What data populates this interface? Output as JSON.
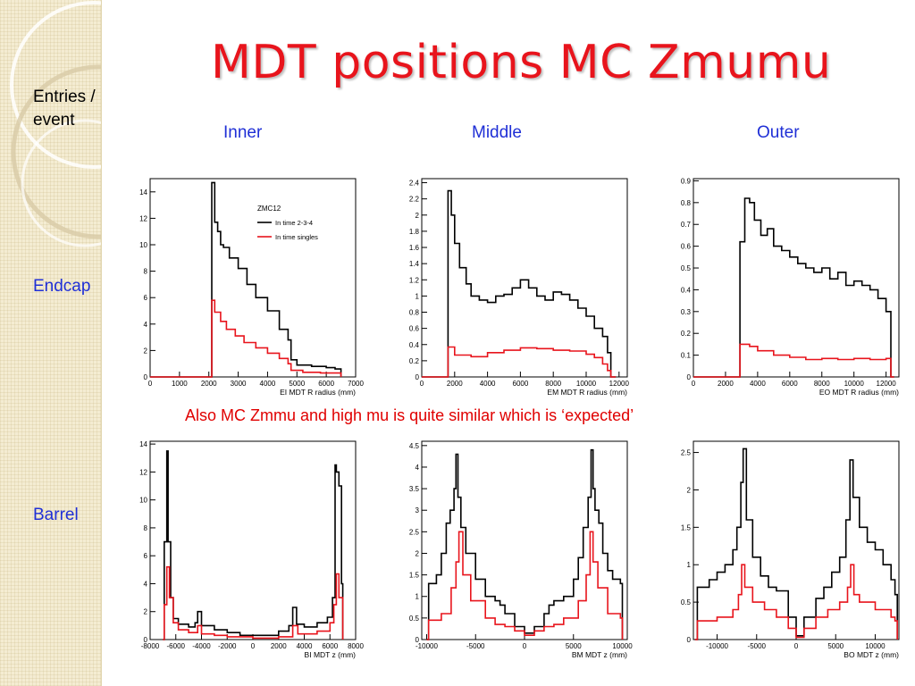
{
  "slide": {
    "title": "MDT positions MC Zmumu",
    "y_label": "Entries / event",
    "row_labels": {
      "endcap": "Endcap",
      "barrel": "Barrel"
    },
    "column_labels": {
      "inner": "Inner",
      "middle": "Middle",
      "outer": "Outer"
    },
    "note": "Also MC Zmmu and high mu is quite similar which is ‘expected’"
  },
  "colors": {
    "title": "#e8141c",
    "labels": "#1f2fd6",
    "note": "#e00000",
    "series_black": "#000000",
    "series_red": "#e8141c"
  },
  "chart_data": [
    {
      "id": "ei",
      "type": "line",
      "xlabel": "EI MDT R radius (mm)",
      "ylabel": "",
      "xlim": [
        0,
        7000
      ],
      "ylim": [
        0,
        15
      ],
      "xticks": [
        0,
        1000,
        2000,
        3000,
        4000,
        5000,
        6000,
        7000
      ],
      "yticks": [
        0,
        2,
        4,
        6,
        8,
        10,
        12,
        14
      ],
      "legend": {
        "title": "ZMC12",
        "position": "top-right"
      },
      "series": [
        {
          "name": "In time 2-3-4",
          "color": "#000000",
          "x": [
            0,
            2000,
            2100,
            2200,
            2300,
            2400,
            2500,
            2700,
            3000,
            3300,
            3600,
            4000,
            4400,
            4700,
            4800,
            5000,
            5500,
            6000,
            6300,
            6500
          ],
          "y": [
            0,
            0,
            14.7,
            11.7,
            11,
            10,
            9.8,
            9,
            8.2,
            7,
            6,
            5,
            3.6,
            2.8,
            1.3,
            0.9,
            0.8,
            0.7,
            0.6,
            0
          ]
        },
        {
          "name": "In time singles",
          "color": "#e8141c",
          "x": [
            0,
            2000,
            2100,
            2200,
            2400,
            2600,
            2900,
            3200,
            3600,
            4000,
            4400,
            4700,
            4800,
            5200,
            5800,
            6300,
            6500
          ],
          "y": [
            0,
            0,
            5.8,
            4.9,
            4.2,
            3.6,
            3.1,
            2.6,
            2.2,
            1.8,
            1.4,
            1,
            0.5,
            0.35,
            0.3,
            0.3,
            0
          ]
        }
      ]
    },
    {
      "id": "em",
      "type": "line",
      "xlabel": "EM MDT R radius (mm)",
      "ylabel": "",
      "xlim": [
        0,
        12500
      ],
      "ylim": [
        0,
        2.45
      ],
      "xticks": [
        0,
        2000,
        4000,
        6000,
        8000,
        10000,
        12000
      ],
      "yticks": [
        0,
        0.2,
        0.4,
        0.6,
        0.8,
        1,
        1.2,
        1.4,
        1.6,
        1.8,
        2,
        2.2,
        2.4
      ],
      "series": [
        {
          "name": "",
          "color": "#000000",
          "x": [
            0,
            1500,
            1600,
            1800,
            2000,
            2300,
            2700,
            3000,
            3500,
            4000,
            4500,
            5000,
            5500,
            6000,
            6500,
            7000,
            7500,
            8000,
            8500,
            9000,
            9500,
            10000,
            10500,
            11000,
            11300,
            11500,
            11800
          ],
          "y": [
            0,
            0,
            2.3,
            2,
            1.65,
            1.35,
            1.15,
            1.0,
            0.95,
            0.92,
            1.0,
            1.02,
            1.1,
            1.2,
            1.1,
            1.0,
            0.95,
            1.05,
            1.02,
            0.95,
            0.85,
            0.75,
            0.6,
            0.5,
            0.3,
            0,
            0
          ]
        },
        {
          "name": "",
          "color": "#e8141c",
          "x": [
            0,
            1500,
            1600,
            2000,
            3000,
            4000,
            5000,
            6000,
            7000,
            8000,
            9000,
            10000,
            10500,
            11000,
            11300,
            11500,
            11800
          ],
          "y": [
            0,
            0,
            0.37,
            0.27,
            0.25,
            0.3,
            0.33,
            0.36,
            0.35,
            0.33,
            0.32,
            0.28,
            0.24,
            0.16,
            0.08,
            0,
            0
          ]
        }
      ]
    },
    {
      "id": "eo",
      "type": "line",
      "xlabel": "EO MDT R radius (mm)",
      "ylabel": "",
      "xlim": [
        0,
        12800
      ],
      "ylim": [
        0,
        0.91
      ],
      "xticks": [
        0,
        2000,
        4000,
        6000,
        8000,
        10000,
        12000
      ],
      "yticks": [
        0,
        0.1,
        0.2,
        0.3,
        0.4,
        0.5,
        0.6,
        0.7,
        0.8,
        0.9
      ],
      "series": [
        {
          "name": "",
          "color": "#000000",
          "x": [
            0,
            2800,
            2900,
            3200,
            3500,
            3800,
            4200,
            4600,
            5000,
            5500,
            6000,
            6500,
            7000,
            7500,
            8000,
            8500,
            9000,
            9500,
            10000,
            10500,
            11000,
            11500,
            12000,
            12300,
            12500
          ],
          "y": [
            0,
            0,
            0.62,
            0.82,
            0.8,
            0.72,
            0.65,
            0.68,
            0.6,
            0.58,
            0.55,
            0.52,
            0.5,
            0.48,
            0.5,
            0.45,
            0.48,
            0.42,
            0.44,
            0.42,
            0.4,
            0.36,
            0.3,
            0,
            0
          ]
        },
        {
          "name": "",
          "color": "#e8141c",
          "x": [
            0,
            2800,
            2900,
            3500,
            4000,
            5000,
            6000,
            7000,
            8000,
            9000,
            10000,
            11000,
            12000,
            12300,
            12500
          ],
          "y": [
            0,
            0,
            0.15,
            0.14,
            0.12,
            0.1,
            0.09,
            0.08,
            0.085,
            0.08,
            0.085,
            0.08,
            0.085,
            0,
            0
          ]
        }
      ]
    },
    {
      "id": "bi",
      "type": "line",
      "xlabel": "BI MDT z (mm)",
      "ylabel": "",
      "xlim": [
        -8000,
        8000
      ],
      "ylim": [
        0,
        14.2
      ],
      "xticks": [
        -8000,
        -6000,
        -4000,
        -2000,
        0,
        2000,
        4000,
        6000,
        8000
      ],
      "yticks": [
        0,
        2,
        4,
        6,
        8,
        10,
        12,
        14
      ],
      "series": [
        {
          "name": "",
          "color": "#000000",
          "x": [
            -7000,
            -6900,
            -6700,
            -6600,
            -6400,
            -6200,
            -5800,
            -5000,
            -4500,
            -4300,
            -4000,
            -3000,
            -2000,
            -1000,
            0,
            1000,
            2000,
            2800,
            3100,
            3400,
            4000,
            5000,
            5800,
            6200,
            6400,
            6500,
            6700,
            6900,
            7000
          ],
          "y": [
            0,
            7,
            13.5,
            7,
            3,
            1.5,
            1.1,
            0.9,
            1.2,
            2,
            1.0,
            0.7,
            0.5,
            0.3,
            0.3,
            0.3,
            0.6,
            1.0,
            2.3,
            1.1,
            0.9,
            1.2,
            1.6,
            3,
            12.5,
            12,
            11,
            4,
            0
          ]
        },
        {
          "name": "",
          "color": "#e8141c",
          "x": [
            -7000,
            -6900,
            -6700,
            -6500,
            -6200,
            -5800,
            -5000,
            -4300,
            -4000,
            -3000,
            -2000,
            0,
            2000,
            3100,
            3500,
            4000,
            5000,
            6000,
            6300,
            6500,
            6700,
            7000
          ],
          "y": [
            0,
            2.5,
            5.2,
            3,
            1.2,
            0.7,
            0.5,
            1.0,
            0.4,
            0.3,
            0.2,
            0.1,
            0.2,
            1.0,
            0.4,
            0.4,
            0.6,
            1.2,
            2.5,
            4.7,
            3,
            0
          ]
        }
      ]
    },
    {
      "id": "bm",
      "type": "line",
      "xlabel": "BM MDT z (mm)",
      "ylabel": "",
      "xlim": [
        -10500,
        10500
      ],
      "ylim": [
        0,
        4.6
      ],
      "xticks": [
        -10000,
        -5000,
        0,
        5000,
        10000
      ],
      "yticks": [
        0,
        0.5,
        1,
        1.5,
        2,
        2.5,
        3,
        3.5,
        4,
        4.5
      ],
      "series": [
        {
          "name": "",
          "color": "#000000",
          "x": [
            -10000,
            -9800,
            -9000,
            -8500,
            -8000,
            -7600,
            -7200,
            -7000,
            -6800,
            -6500,
            -6000,
            -5000,
            -4000,
            -3000,
            -2500,
            -2000,
            -1000,
            0,
            1000,
            2000,
            2500,
            3000,
            4000,
            5000,
            5500,
            6000,
            6500,
            6800,
            7000,
            7200,
            7600,
            8000,
            8500,
            9000,
            9800,
            10000
          ],
          "y": [
            0,
            1.3,
            1.5,
            2.0,
            2.7,
            3.0,
            3.5,
            4.3,
            3.3,
            2.6,
            2.0,
            1.4,
            1.0,
            0.9,
            0.8,
            0.6,
            0.3,
            0.15,
            0.3,
            0.6,
            0.8,
            0.9,
            1.0,
            1.4,
            1.9,
            2.6,
            3.3,
            4.4,
            3.5,
            3.0,
            2.7,
            2.0,
            1.6,
            1.4,
            1.3,
            0
          ]
        },
        {
          "name": "",
          "color": "#e8141c",
          "x": [
            -10000,
            -9800,
            -8500,
            -7500,
            -7000,
            -6700,
            -6300,
            -5500,
            -4000,
            -3000,
            -2000,
            -1000,
            0,
            1000,
            2000,
            3000,
            4000,
            5500,
            6300,
            6700,
            7000,
            7500,
            8500,
            9800,
            10000
          ],
          "y": [
            0,
            0.45,
            0.6,
            1.2,
            1.8,
            2.5,
            1.5,
            0.9,
            0.5,
            0.35,
            0.3,
            0.2,
            0.1,
            0.2,
            0.3,
            0.35,
            0.5,
            0.9,
            1.5,
            2.5,
            1.8,
            1.2,
            0.6,
            0.5,
            0
          ]
        }
      ]
    },
    {
      "id": "bo",
      "type": "line",
      "xlabel": "BO MDT z (mm)",
      "ylabel": "",
      "xlim": [
        -13000,
        13000
      ],
      "ylim": [
        0,
        2.65
      ],
      "xticks": [
        -10000,
        -5000,
        0,
        5000,
        10000
      ],
      "yticks": [
        0,
        0.5,
        1,
        1.5,
        2,
        2.5
      ],
      "series": [
        {
          "name": "",
          "color": "#000000",
          "x": [
            -12800,
            -12500,
            -11000,
            -10000,
            -9000,
            -8000,
            -7500,
            -7000,
            -6700,
            -6300,
            -5500,
            -4500,
            -3500,
            -2500,
            -1000,
            0,
            1000,
            2500,
            3500,
            4500,
            5500,
            6300,
            6800,
            7200,
            8000,
            9000,
            10000,
            11000,
            12000,
            12500,
            12800
          ],
          "y": [
            0,
            0.7,
            0.8,
            0.9,
            1.0,
            1.2,
            1.5,
            2.1,
            2.55,
            1.6,
            1.1,
            0.85,
            0.7,
            0.65,
            0.3,
            0.05,
            0.3,
            0.55,
            0.7,
            0.9,
            1.1,
            1.6,
            2.4,
            1.9,
            1.5,
            1.3,
            1.2,
            1.0,
            0.8,
            0.6,
            0
          ]
        },
        {
          "name": "",
          "color": "#e8141c",
          "x": [
            -12800,
            -12500,
            -10000,
            -8000,
            -7300,
            -6900,
            -6500,
            -5500,
            -4000,
            -2500,
            -1000,
            0,
            1000,
            2500,
            4000,
            5500,
            6500,
            6900,
            7300,
            8000,
            10000,
            12000,
            12500,
            12800
          ],
          "y": [
            0,
            0.25,
            0.3,
            0.4,
            0.6,
            1.0,
            0.7,
            0.5,
            0.4,
            0.3,
            0.15,
            0.03,
            0.15,
            0.3,
            0.4,
            0.5,
            0.7,
            1.0,
            0.6,
            0.5,
            0.4,
            0.3,
            0.25,
            0
          ]
        }
      ]
    }
  ]
}
